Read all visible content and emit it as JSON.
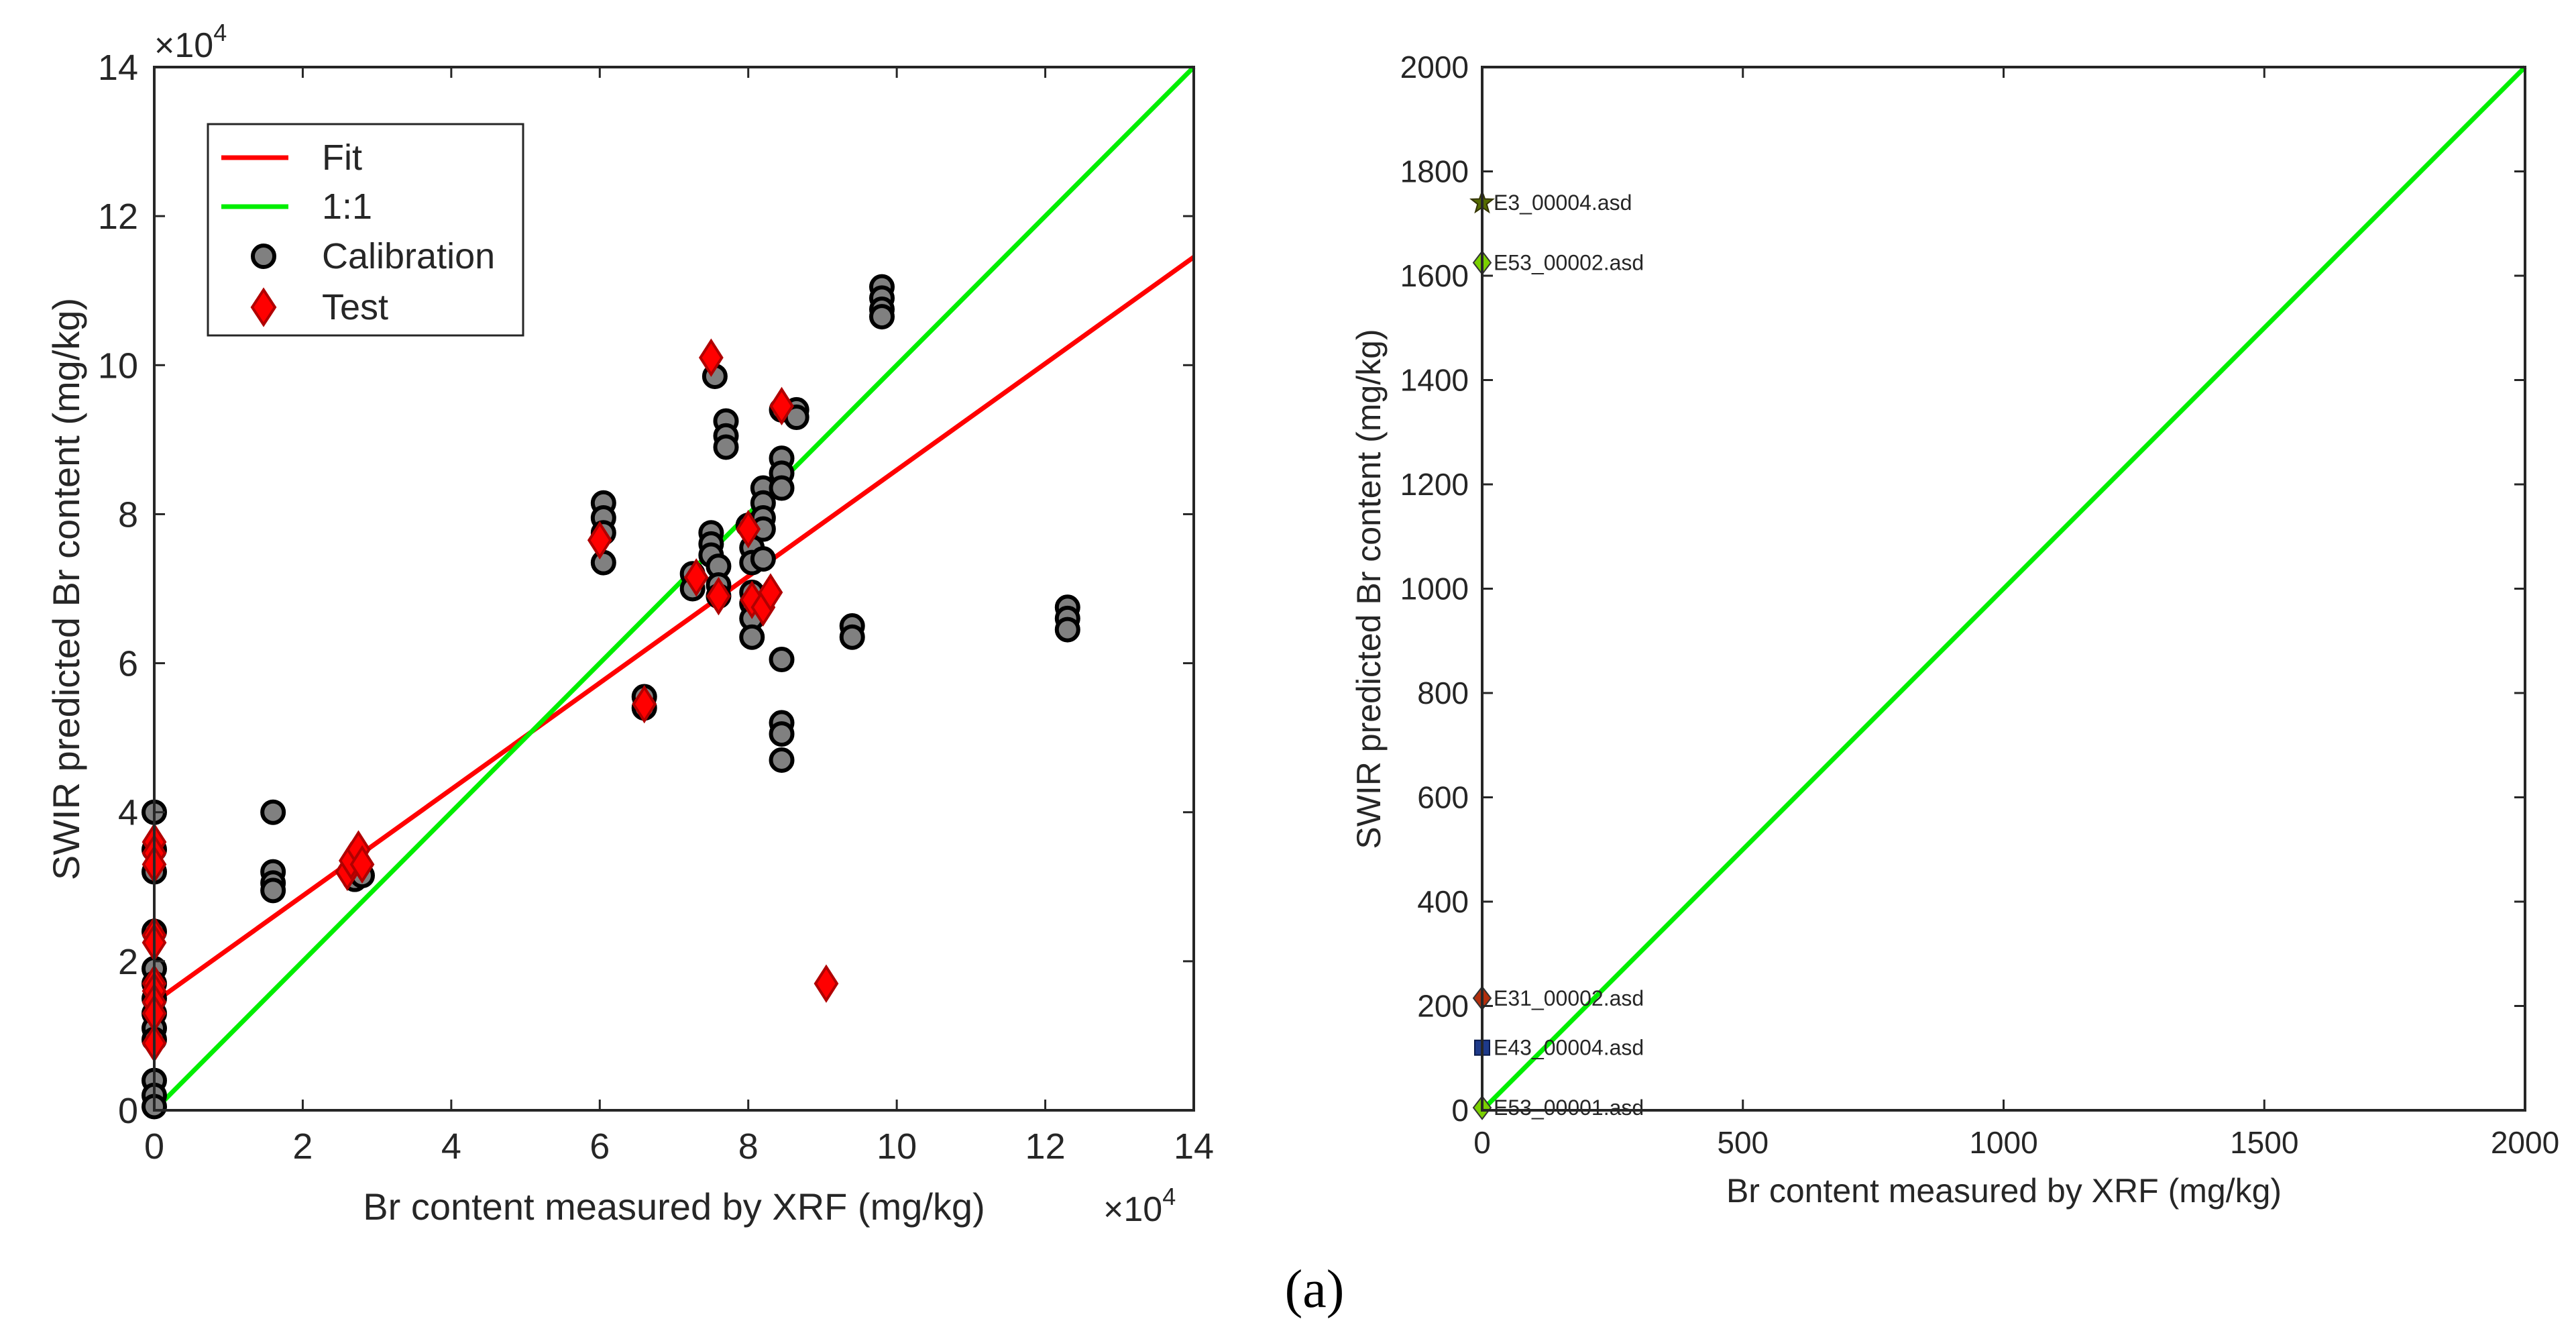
{
  "caption": "(a)",
  "chart_data": [
    {
      "type": "scatter",
      "xlabel": "Br content measured by XRF (mg/kg)",
      "ylabel": "SWIR predicted Br content (mg/kg)",
      "xlim": [
        0,
        14
      ],
      "ylim": [
        0,
        14
      ],
      "xticks": [
        "0",
        "2",
        "4",
        "6",
        "8",
        "10",
        "12",
        "14"
      ],
      "yticks": [
        "0",
        "2",
        "4",
        "6",
        "8",
        "10",
        "12",
        "14"
      ],
      "x_exponent": "×10",
      "y_exponent": "×10",
      "exponent_power": "4",
      "legend_position": "top-left",
      "legend": [
        {
          "label": "Fit",
          "kind": "line",
          "color": "#ff0000"
        },
        {
          "label": "1:1",
          "kind": "line",
          "color": "#00ee00"
        },
        {
          "label": "Calibration",
          "kind": "circle",
          "color": "#808080"
        },
        {
          "label": "Test",
          "kind": "diamond",
          "color": "#ff0000"
        }
      ],
      "lines": [
        {
          "name": "Fit",
          "color": "#ff0000",
          "x": [
            0,
            14
          ],
          "y": [
            1.45,
            11.45
          ]
        },
        {
          "name": "1:1",
          "color": "#00ee00",
          "x": [
            0,
            14
          ],
          "y": [
            0,
            14
          ]
        }
      ],
      "series": [
        {
          "name": "Calibration",
          "marker": "circle",
          "color": "#808080",
          "points": [
            [
              0,
              4.0
            ],
            [
              0,
              3.5
            ],
            [
              0,
              3.2
            ],
            [
              0,
              2.4
            ],
            [
              0,
              1.9
            ],
            [
              0,
              1.7
            ],
            [
              0,
              1.5
            ],
            [
              0,
              1.3
            ],
            [
              0,
              1.1
            ],
            [
              0,
              0.95
            ],
            [
              0,
              0.4
            ],
            [
              0,
              0.2
            ],
            [
              0,
              0.05
            ],
            [
              1.6,
              4.0
            ],
            [
              1.6,
              3.2
            ],
            [
              1.6,
              3.05
            ],
            [
              1.6,
              2.95
            ],
            [
              2.65,
              3.2
            ],
            [
              2.7,
              3.1
            ],
            [
              2.75,
              3.3
            ],
            [
              2.8,
              3.15
            ],
            [
              6.05,
              8.15
            ],
            [
              6.05,
              7.95
            ],
            [
              6.05,
              7.75
            ],
            [
              6.05,
              7.35
            ],
            [
              6.6,
              5.55
            ],
            [
              6.6,
              5.4
            ],
            [
              7.25,
              7.2
            ],
            [
              7.25,
              7.0
            ],
            [
              7.5,
              7.75
            ],
            [
              7.5,
              7.6
            ],
            [
              7.5,
              7.45
            ],
            [
              7.55,
              9.85
            ],
            [
              7.6,
              7.3
            ],
            [
              7.6,
              7.05
            ],
            [
              7.6,
              6.9
            ],
            [
              7.7,
              9.25
            ],
            [
              7.7,
              9.05
            ],
            [
              7.7,
              8.9
            ],
            [
              8.0,
              7.85
            ],
            [
              8.05,
              7.55
            ],
            [
              8.05,
              7.35
            ],
            [
              8.05,
              6.95
            ],
            [
              8.05,
              6.8
            ],
            [
              8.05,
              6.6
            ],
            [
              8.05,
              6.35
            ],
            [
              8.2,
              8.35
            ],
            [
              8.2,
              8.15
            ],
            [
              8.2,
              7.95
            ],
            [
              8.2,
              7.8
            ],
            [
              8.2,
              7.4
            ],
            [
              8.45,
              9.4
            ],
            [
              8.45,
              8.75
            ],
            [
              8.45,
              8.55
            ],
            [
              8.45,
              8.35
            ],
            [
              8.45,
              6.05
            ],
            [
              8.45,
              5.2
            ],
            [
              8.45,
              5.05
            ],
            [
              8.45,
              4.7
            ],
            [
              8.65,
              9.4
            ],
            [
              8.65,
              9.3
            ],
            [
              9.4,
              6.5
            ],
            [
              9.4,
              6.35
            ],
            [
              9.8,
              11.05
            ],
            [
              9.8,
              10.9
            ],
            [
              9.8,
              10.75
            ],
            [
              9.8,
              10.65
            ],
            [
              12.3,
              6.75
            ],
            [
              12.3,
              6.6
            ],
            [
              12.3,
              6.45
            ]
          ]
        },
        {
          "name": "Test",
          "marker": "diamond",
          "color": "#ff0000",
          "points": [
            [
              0,
              3.6
            ],
            [
              0,
              3.45
            ],
            [
              0,
              3.3
            ],
            [
              0,
              2.35
            ],
            [
              0,
              2.25
            ],
            [
              0,
              1.7
            ],
            [
              0,
              1.6
            ],
            [
              0,
              1.45
            ],
            [
              0,
              1.3
            ],
            [
              0,
              0.9
            ],
            [
              2.6,
              3.2
            ],
            [
              2.65,
              3.35
            ],
            [
              2.75,
              3.5
            ],
            [
              2.8,
              3.3
            ],
            [
              6.0,
              7.65
            ],
            [
              6.6,
              5.45
            ],
            [
              7.3,
              7.15
            ],
            [
              7.5,
              10.1
            ],
            [
              7.6,
              6.9
            ],
            [
              8.0,
              7.8
            ],
            [
              8.05,
              6.85
            ],
            [
              8.2,
              6.75
            ],
            [
              8.3,
              6.95
            ],
            [
              8.45,
              9.45
            ],
            [
              9.05,
              1.7
            ]
          ]
        }
      ]
    },
    {
      "type": "scatter",
      "xlabel": "Br content measured by XRF (mg/kg)",
      "ylabel": "SWIR predicted Br content (mg/kg)",
      "xlim": [
        0,
        2000
      ],
      "ylim": [
        0,
        2000
      ],
      "xticks": [
        "0",
        "500",
        "1000",
        "1500",
        "2000"
      ],
      "yticks": [
        "0",
        "200",
        "400",
        "600",
        "800",
        "1000",
        "1200",
        "1400",
        "1600",
        "1800",
        "2000"
      ],
      "lines": [
        {
          "name": "1:1",
          "color": "#00ee00",
          "x": [
            0,
            2000
          ],
          "y": [
            0,
            2000
          ]
        }
      ],
      "points": [
        {
          "label": "E3_00004.asd",
          "x": 0,
          "y": 1740,
          "marker": "star",
          "color": "#556b00"
        },
        {
          "label": "E53_00002.asd",
          "x": 0,
          "y": 1625,
          "marker": "diamond",
          "color": "#7ad000"
        },
        {
          "label": "E31_00002.asd",
          "x": 0,
          "y": 215,
          "marker": "diamond",
          "color": "#b22f0d"
        },
        {
          "label": "E43_00004.asd",
          "x": 0,
          "y": 120,
          "marker": "square",
          "color": "#1e3a8a"
        },
        {
          "label": "E53_00001.asd",
          "x": 0,
          "y": 5,
          "marker": "diamond",
          "color": "#7ad000"
        }
      ]
    }
  ]
}
